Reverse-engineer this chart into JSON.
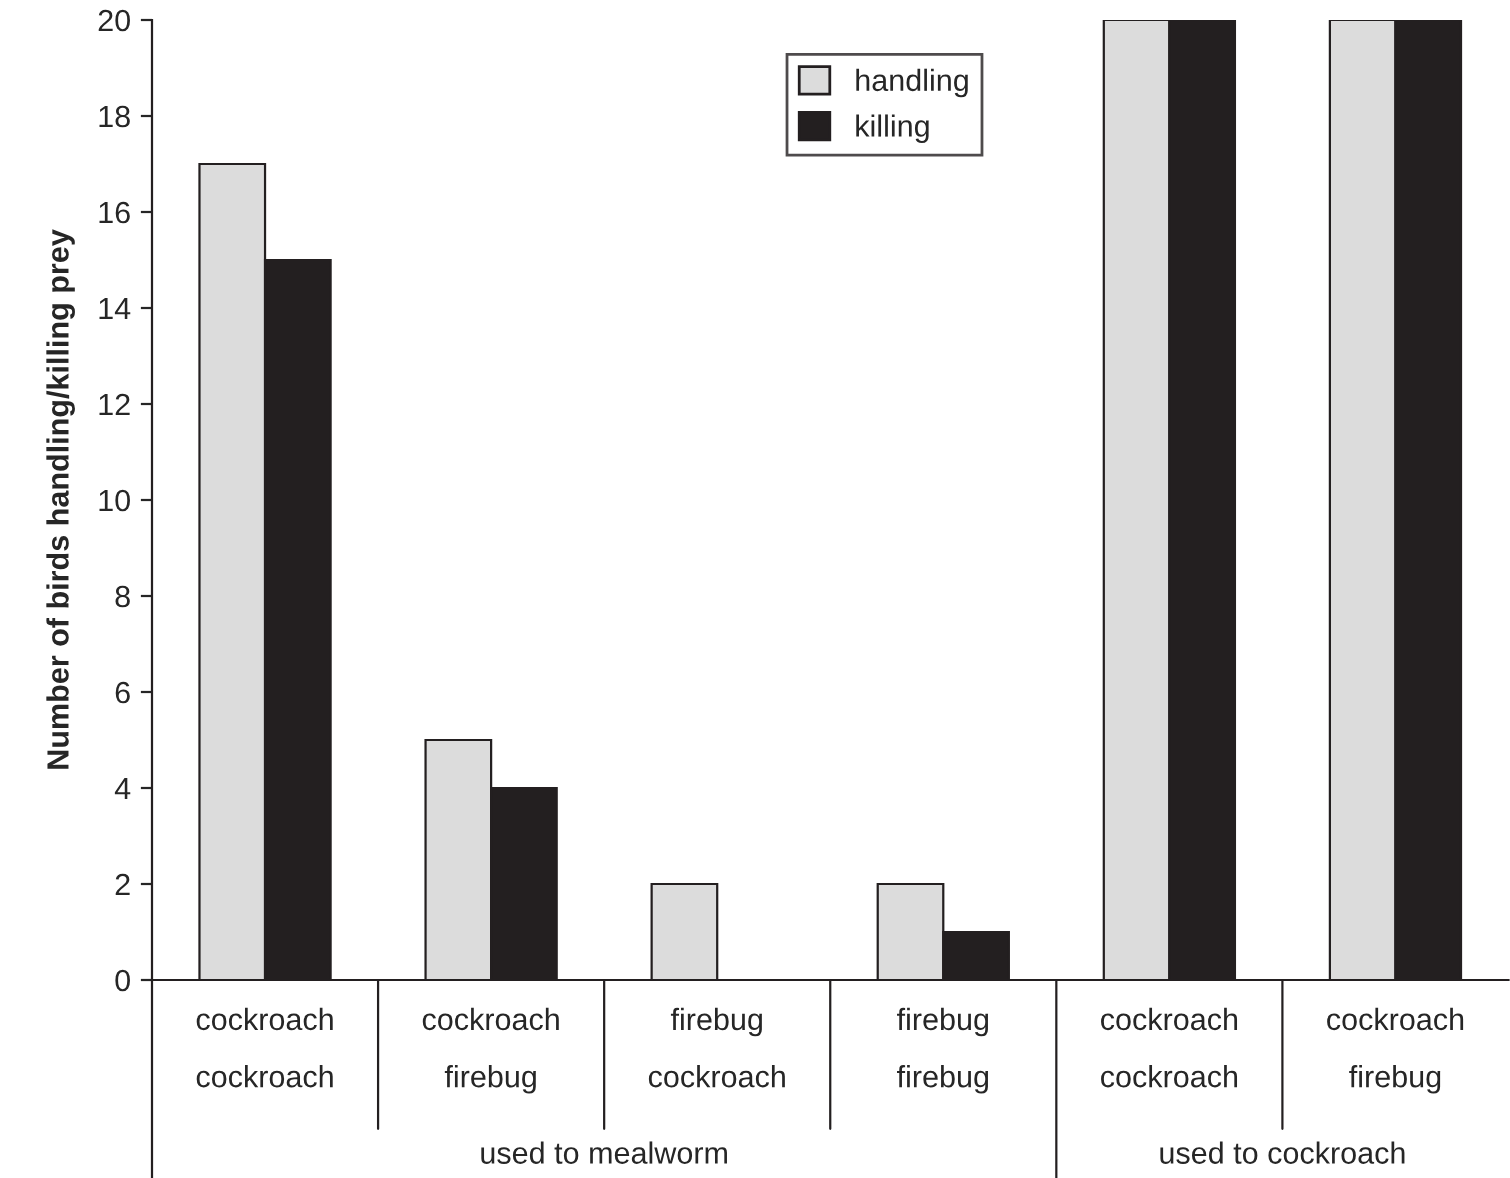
{
  "chart_data": {
    "type": "bar",
    "ylabel": "Number of birds handling/killing prey",
    "categories": [
      "cockroach\ncockroach",
      "cockroach\nfirebug",
      "firebug\ncockroach",
      "firebug\nfirebug",
      "cockroach\ncockroach",
      "cockroach\nfirebug"
    ],
    "series": [
      {
        "name": "handling",
        "color": "#dcdcdc",
        "values": [
          17,
          5,
          2,
          2,
          20,
          20
        ]
      },
      {
        "name": "killing",
        "color": "#231f20",
        "values": [
          15,
          4,
          0,
          1,
          20,
          20
        ]
      }
    ],
    "ylim": [
      0,
      20
    ],
    "yticks": [
      0,
      2,
      4,
      6,
      8,
      10,
      12,
      14,
      16,
      18,
      20
    ],
    "grid": false,
    "legend": "top",
    "annotations": [
      "used to mealworm",
      "used to cockroach"
    ]
  }
}
